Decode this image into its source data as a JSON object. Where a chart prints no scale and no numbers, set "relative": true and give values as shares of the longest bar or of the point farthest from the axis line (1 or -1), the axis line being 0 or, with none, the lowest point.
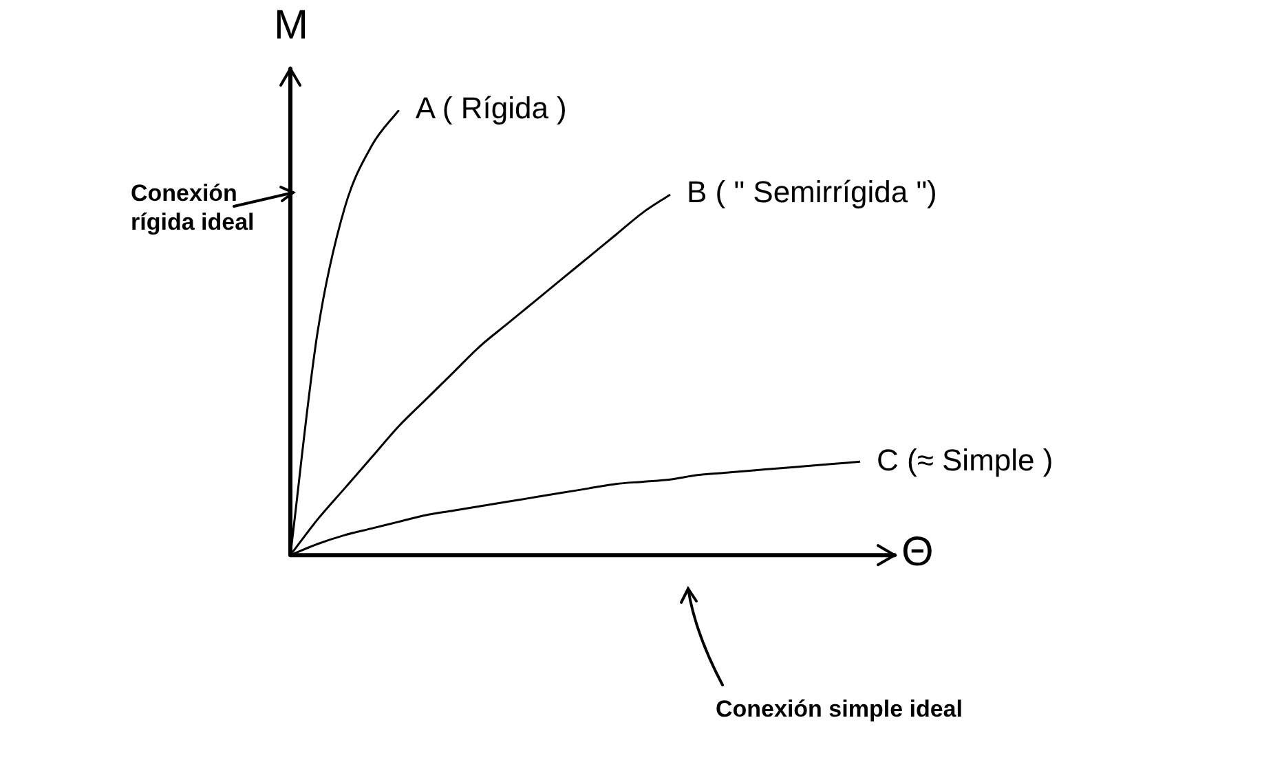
{
  "chart_data": {
    "type": "line",
    "relative": true,
    "xlabel": "Θ",
    "ylabel": "M",
    "grid": false,
    "legend": false,
    "marker": "none",
    "line_style": "solid",
    "categories": [
      null,
      null,
      null,
      null,
      null,
      null,
      null,
      null,
      null,
      null,
      null,
      null,
      null,
      null,
      null,
      null,
      null,
      null,
      null,
      null,
      null,
      null
    ],
    "series": [
      {
        "name": "A ( Rígida )",
        "color": "#000000",
        "values": [
          0,
          0.5,
          0.78,
          0.92,
          1,
          null,
          null,
          null,
          null,
          null,
          null,
          null,
          null,
          null,
          null,
          null,
          null,
          null,
          null,
          null,
          null,
          null
        ]
      },
      {
        "name": "B ( \" Semirrígida \")",
        "color": "#000000",
        "values": [
          0,
          0.08,
          0.15,
          0.22,
          0.29,
          0.35,
          0.41,
          0.47,
          0.52,
          0.57,
          0.62,
          0.67,
          0.72,
          0.77,
          0.81,
          null,
          null,
          null,
          null,
          null,
          null,
          null
        ]
      },
      {
        "name": "C (≈ Simple )",
        "color": "#000000",
        "values": [
          0,
          0.025,
          0.045,
          0.06,
          0.075,
          0.09,
          0.1,
          0.11,
          0.12,
          0.13,
          0.14,
          0.15,
          0.16,
          0.165,
          0.17,
          0.18,
          0.185,
          0.19,
          0.195,
          0.2,
          0.205,
          0.21
        ]
      }
    ],
    "annotations": [
      "Conexión rígida ideal",
      "Conexión simple ideal"
    ]
  }
}
